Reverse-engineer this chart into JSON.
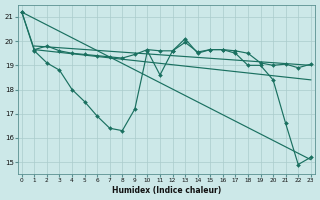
{
  "xlabel": "Humidex (Indice chaleur)",
  "background_color": "#cce8e8",
  "grid_color": "#aacccc",
  "line_color": "#1a7060",
  "xlim_min": -0.3,
  "xlim_max": 23.3,
  "ylim_min": 14.5,
  "ylim_max": 21.5,
  "yticks": [
    15,
    16,
    17,
    18,
    19,
    20,
    21
  ],
  "xticks": [
    0,
    1,
    2,
    3,
    4,
    5,
    6,
    7,
    8,
    9,
    10,
    11,
    12,
    13,
    14,
    15,
    16,
    17,
    18,
    19,
    20,
    21,
    22,
    23
  ],
  "series": [
    {
      "x": [
        0,
        1,
        2,
        3,
        4,
        5,
        6,
        7,
        8,
        9,
        10,
        11,
        12,
        13,
        14,
        15,
        16,
        17,
        18,
        19,
        20,
        21,
        22,
        23
      ],
      "y": [
        21.2,
        19.6,
        19.1,
        18.8,
        18.0,
        17.5,
        16.9,
        16.4,
        16.3,
        17.2,
        19.6,
        18.6,
        19.6,
        20.1,
        19.5,
        19.65,
        19.65,
        19.5,
        19.0,
        19.0,
        18.4,
        16.6,
        14.9,
        15.2
      ],
      "has_marker": true
    },
    {
      "x": [
        0,
        1,
        2,
        3,
        4,
        5,
        6,
        7,
        8,
        9,
        10,
        11,
        12,
        13,
        14,
        15,
        16,
        17,
        18,
        19,
        20,
        21,
        22,
        23
      ],
      "y": [
        21.2,
        19.65,
        19.8,
        19.6,
        19.5,
        19.45,
        19.4,
        19.35,
        19.3,
        19.45,
        19.65,
        19.6,
        19.6,
        19.95,
        19.55,
        19.65,
        19.65,
        19.6,
        19.5,
        19.1,
        19.0,
        19.05,
        18.9,
        19.05
      ],
      "has_marker": true
    },
    {
      "x": [
        0,
        23
      ],
      "y": [
        21.2,
        15.1
      ],
      "has_marker": false
    },
    {
      "x": [
        1,
        23
      ],
      "y": [
        19.65,
        18.4
      ],
      "has_marker": false
    },
    {
      "x": [
        1,
        23
      ],
      "y": [
        19.8,
        19.0
      ],
      "has_marker": false
    }
  ]
}
